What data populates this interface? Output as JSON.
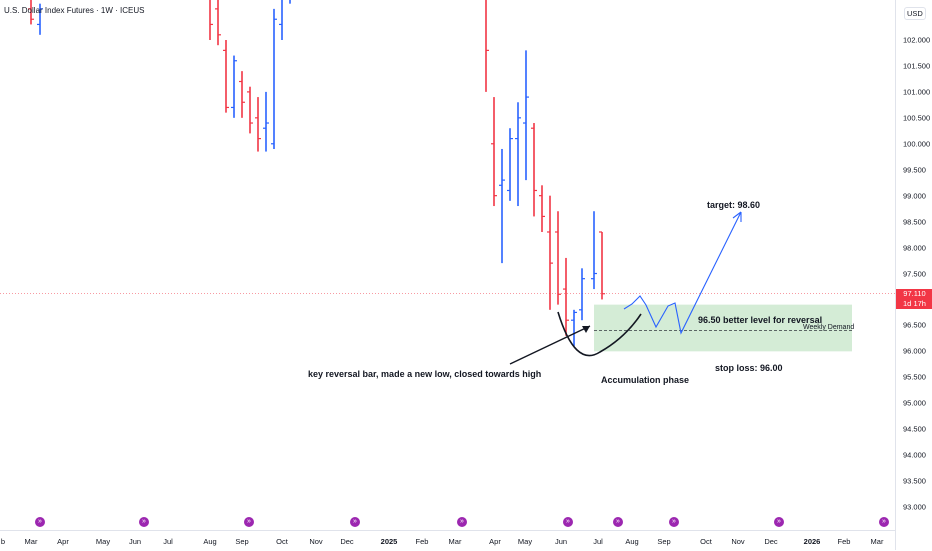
{
  "header": {
    "symbol_title": "U.S. Dollar Index Futures · 1W · ICEUS"
  },
  "price_axis": {
    "currency": "USD",
    "labels": [
      "102.000",
      "101.500",
      "101.000",
      "100.500",
      "100.000",
      "99.500",
      "99.000",
      "98.500",
      "98.000",
      "97.500",
      "96.500",
      "96.000",
      "95.500",
      "95.000",
      "94.500",
      "94.000",
      "93.500",
      "93.000"
    ],
    "last_price": "97.110",
    "countdown": "1d 17h"
  },
  "time_axis": {
    "labels": [
      "b",
      "Mar",
      "Apr",
      "May",
      "Jun",
      "Jul",
      "Aug",
      "Sep",
      "Oct",
      "Nov",
      "Dec",
      "2025",
      "Feb",
      "Mar",
      "Apr",
      "May",
      "Jun",
      "Jul",
      "Aug",
      "Sep",
      "Oct",
      "Nov",
      "Dec",
      "2026",
      "Feb",
      "Mar"
    ]
  },
  "annotations": {
    "target": "target: 98.60",
    "better_level": "96.50 better level for reversal",
    "weekly_demand": "Weekly Demand",
    "key_reversal": "key reversal bar, made a new low, closed towards high",
    "accumulation": "Accumulation phase",
    "stop_loss": "stop loss: 96.00"
  },
  "colors": {
    "up": "#2962ff",
    "down": "#f23645",
    "demand_zone": "#d4ecd6",
    "projection": "#2962ff",
    "event_icon": "#9c27b0"
  },
  "events": {
    "icon": "arrow-circle-icon",
    "glyph": "»"
  },
  "chart_data": {
    "type": "ohlc",
    "price_range": [
      92.85,
      103.0
    ],
    "bars": [
      {
        "o": 102.6,
        "h": 103.0,
        "l": 102.3,
        "c": 102.4
      },
      {
        "o": 102.3,
        "h": 102.7,
        "l": 102.1,
        "c": 102.6
      },
      {
        "o": 103.0,
        "h": 103.0,
        "l": 102.0,
        "c": 102.3
      },
      {
        "o": 102.6,
        "h": 102.9,
        "l": 101.9,
        "c": 102.1
      },
      {
        "o": 101.8,
        "h": 102.0,
        "l": 100.6,
        "c": 100.7
      },
      {
        "o": 100.7,
        "h": 101.7,
        "l": 100.5,
        "c": 101.6
      },
      {
        "o": 101.2,
        "h": 101.4,
        "l": 100.5,
        "c": 100.8
      },
      {
        "o": 101.0,
        "h": 101.1,
        "l": 100.2,
        "c": 100.4
      },
      {
        "o": 100.5,
        "h": 100.9,
        "l": 99.85,
        "c": 100.1
      },
      {
        "o": 100.3,
        "h": 101.0,
        "l": 99.85,
        "c": 100.4
      },
      {
        "o": 100.0,
        "h": 102.6,
        "l": 99.9,
        "c": 102.4
      },
      {
        "o": 102.3,
        "h": 103.0,
        "l": 102.0,
        "c": 102.8
      },
      {
        "o": 102.9,
        "h": 103.0,
        "l": 102.7,
        "c": 102.95
      },
      {
        "o": 102.9,
        "h": 103.0,
        "l": 101.0,
        "c": 101.8
      },
      {
        "o": 100.0,
        "h": 100.9,
        "l": 98.8,
        "c": 99.0
      },
      {
        "o": 99.2,
        "h": 99.9,
        "l": 97.7,
        "c": 99.3
      },
      {
        "o": 99.1,
        "h": 100.3,
        "l": 98.9,
        "c": 100.1
      },
      {
        "o": 100.1,
        "h": 100.8,
        "l": 98.8,
        "c": 100.5
      },
      {
        "o": 100.4,
        "h": 101.8,
        "l": 99.3,
        "c": 100.9
      },
      {
        "o": 100.3,
        "h": 100.4,
        "l": 98.6,
        "c": 99.1
      },
      {
        "o": 99.0,
        "h": 99.2,
        "l": 98.3,
        "c": 98.6
      },
      {
        "o": 98.3,
        "h": 99.0,
        "l": 96.8,
        "c": 97.7
      },
      {
        "o": 98.3,
        "h": 98.7,
        "l": 96.9,
        "c": 97.1
      },
      {
        "o": 97.2,
        "h": 97.8,
        "l": 96.3,
        "c": 96.6
      },
      {
        "o": 96.6,
        "h": 96.8,
        "l": 96.1,
        "c": 96.75
      },
      {
        "o": 96.8,
        "h": 97.6,
        "l": 96.6,
        "c": 97.4
      },
      {
        "o": 97.4,
        "h": 98.7,
        "l": 97.2,
        "c": 97.5
      },
      {
        "o": 98.3,
        "h": 98.3,
        "l": 97.0,
        "c": 97.11
      }
    ]
  }
}
